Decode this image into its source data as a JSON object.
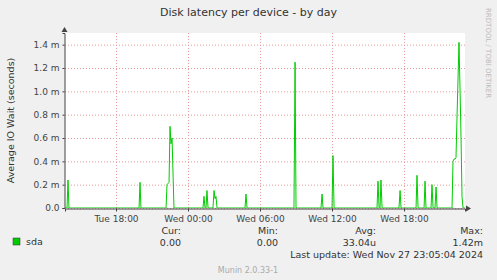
{
  "chart_data": {
    "type": "line",
    "title": "Disk latency per device - by day",
    "y_label": "Average IO Wait (seconds)",
    "x": [
      13.75,
      13.92,
      14.0,
      14.08,
      19.92,
      20.0,
      20.08,
      22.17,
      22.25,
      22.42,
      22.5,
      22.58,
      22.67,
      22.83,
      25.25,
      25.33,
      25.42,
      25.5,
      25.58,
      25.67,
      26.08,
      26.17,
      26.25,
      26.33,
      26.42,
      28.75,
      28.83,
      28.92,
      32.83,
      32.92,
      33.0,
      35.08,
      35.17,
      35.25,
      36.0,
      36.08,
      36.17,
      39.75,
      39.83,
      39.92,
      40.0,
      40.08,
      40.17,
      41.58,
      41.67,
      41.75,
      43.0,
      43.08,
      43.17,
      43.67,
      43.75,
      43.83,
      44.25,
      44.33,
      44.42,
      44.58,
      44.67,
      44.75,
      46.0,
      46.08,
      46.17,
      46.25,
      46.33,
      46.42,
      46.58,
      46.67,
      46.75,
      46.83,
      46.92,
      47.0,
      47.08
    ],
    "series": [
      {
        "name": "sda",
        "color": "#00cc00",
        "values": [
          0,
          0,
          0.00024,
          0,
          0,
          0.00022,
          0,
          0,
          0.0002,
          0.00022,
          0.0007,
          0.00055,
          0.0006,
          0,
          0,
          0.0001,
          0,
          0,
          0.00015,
          0,
          0,
          0.00015,
          8e-05,
          0.0001,
          0,
          0,
          0.00012,
          0,
          0,
          0.00125,
          0,
          0,
          0.00012,
          0,
          0,
          0.00045,
          0,
          0,
          0.00023,
          0,
          0,
          0.00024,
          0,
          0,
          0.00015,
          0,
          0,
          0.00028,
          0,
          0,
          0.00023,
          0,
          0,
          0.0002,
          0,
          0,
          0.00018,
          0,
          0,
          0.0004,
          0.00042,
          0.00042,
          0.00043,
          0.0008,
          0.00142,
          0.001,
          0.0006,
          0.0001,
          0,
          0,
          0
        ]
      }
    ],
    "xlim": [
      13.75,
      47.08
    ],
    "xticks": [
      {
        "value": 18,
        "label": "Tue 18:00"
      },
      {
        "value": 24,
        "label": "Wed 00:00"
      },
      {
        "value": 30,
        "label": "Wed 06:00"
      },
      {
        "value": 36,
        "label": "Wed 12:00"
      },
      {
        "value": 42,
        "label": "Wed 18:00"
      }
    ],
    "ylim": [
      0,
      0.0015
    ],
    "yticks": [
      {
        "value": 0,
        "label": "0.0"
      },
      {
        "value": 0.0002,
        "label": "0.2 m"
      },
      {
        "value": 0.0004,
        "label": "0.4 m"
      },
      {
        "value": 0.0006,
        "label": "0.6 m"
      },
      {
        "value": 0.0008,
        "label": "0.8 m"
      },
      {
        "value": 0.001,
        "label": "1.0 m"
      },
      {
        "value": 0.0012,
        "label": "1.2 m"
      },
      {
        "value": 0.0014,
        "label": "1.4 m"
      }
    ],
    "grid": true,
    "annotations": [
      "Cur:",
      "Min:",
      "Avg:",
      "Max:",
      "0.00",
      "0.00",
      "33.04u",
      "1.42m",
      "Last update: Wed Nov 27 23:05:04 2024",
      "Munin 2.0.33-1",
      "RRDTOOL / TOBI OETIKER"
    ]
  }
}
